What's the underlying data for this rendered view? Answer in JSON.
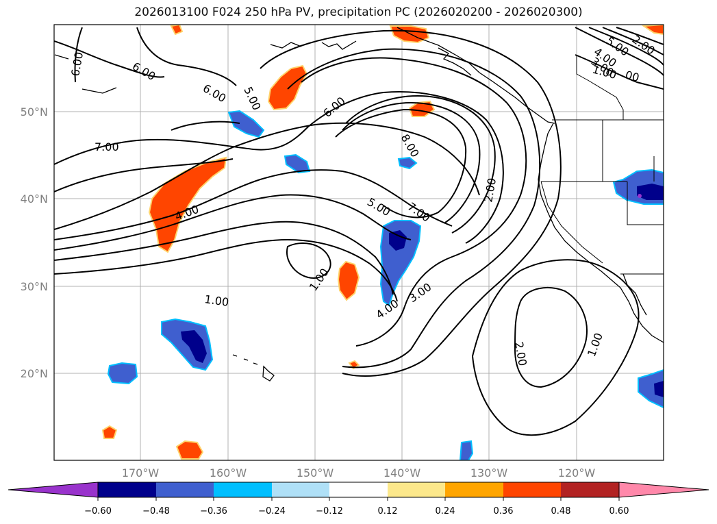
{
  "title": "2026013100 F024 250 hPa PV, precipitation PC (2026020200 - 2026020300)",
  "lat_labels": [
    "50°N",
    "40°N",
    "30°N",
    "20°N"
  ],
  "lon_labels": [
    "170°W",
    "160°W",
    "150°W",
    "140°W",
    "130°W",
    "120°W"
  ],
  "contour_labels": [
    "6.00",
    "6.00",
    "6.00",
    "5.00",
    "6.00",
    "7.00",
    "8.00",
    "4.00",
    "5.00",
    "7.00",
    "2.00",
    "1.00",
    "1.00",
    "3.00",
    "4.00",
    "2.00",
    "1.00",
    "5.00",
    "4.00",
    "3.00",
    "1.00",
    "2.00",
    "00"
  ],
  "colorbar": {
    "ticks": [
      "−0.60",
      "−0.48",
      "−0.36",
      "−0.24",
      "−0.12",
      "0.12",
      "0.24",
      "0.36",
      "0.48",
      "0.60"
    ],
    "colors": [
      "#9933cc",
      "#00008b",
      "#3f5fcf",
      "#00bfff",
      "#afe0f7",
      "#ffffff",
      "#fce88b",
      "#ffa500",
      "#ff4500",
      "#b22222",
      "#ff88aa"
    ]
  },
  "palette": {
    "grid": "#b0b0b0",
    "coast": "#000000",
    "contour": "#000000",
    "orange": "#ff4500",
    "yellow_edge": "#ffd36a",
    "blue_dark": "#00008b",
    "blue_mid": "#3f5fcf",
    "blue_light": "#00bfff"
  }
}
